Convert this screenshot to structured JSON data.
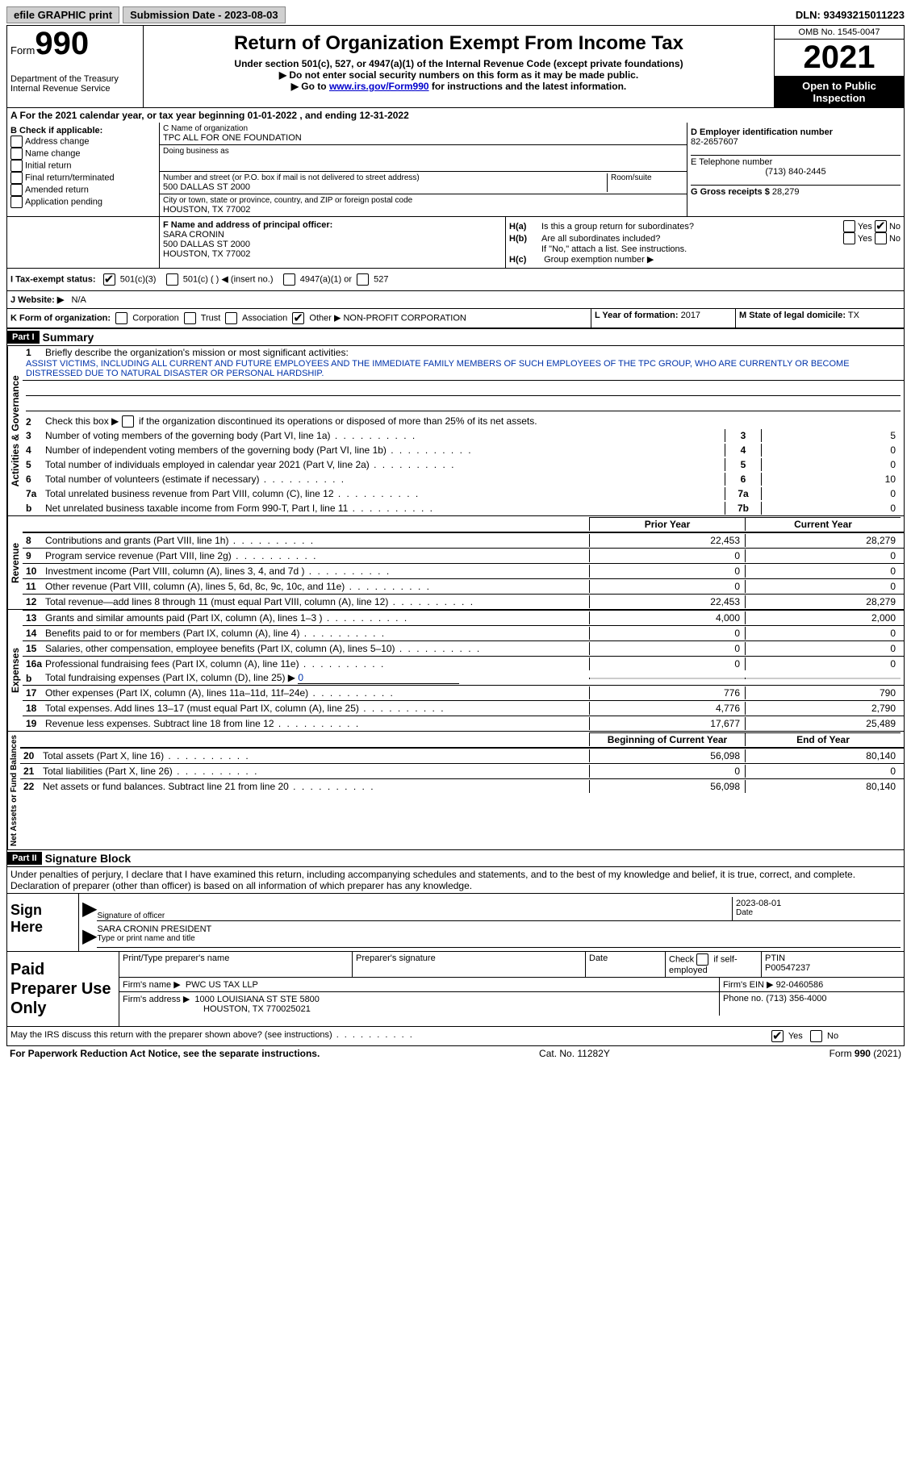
{
  "header": {
    "efile": "efile GRAPHIC print",
    "submission_label": "Submission Date - 2023-08-03",
    "dln": "DLN: 93493215011223"
  },
  "form": {
    "form_word": "Form",
    "form_num": "990",
    "title": "Return of Organization Exempt From Income Tax",
    "subtitle": "Under section 501(c), 527, or 4947(a)(1) of the Internal Revenue Code (except private foundations)",
    "note1": "▶ Do not enter social security numbers on this form as it may be made public.",
    "note2_pre": "▶ Go to ",
    "note2_link": "www.irs.gov/Form990",
    "note2_post": " for instructions and the latest information.",
    "dept": "Department of the Treasury",
    "irs": "Internal Revenue Service",
    "omb": "OMB No. 1545-0047",
    "year": "2021",
    "open": "Open to Public Inspection"
  },
  "period": "A For the 2021 calendar year, or tax year beginning 01-01-2022   , and ending 12-31-2022",
  "box_b": {
    "title": "B Check if applicable:",
    "items": [
      "Address change",
      "Name change",
      "Initial return",
      "Final return/terminated",
      "Amended return",
      "Application pending"
    ]
  },
  "box_c": {
    "name_label": "C Name of organization",
    "name": "TPC ALL FOR ONE FOUNDATION",
    "dba_label": "Doing business as",
    "addr_label": "Number and street (or P.O. box if mail is not delivered to street address)",
    "room_label": "Room/suite",
    "addr": "500 DALLAS ST 2000",
    "city_label": "City or town, state or province, country, and ZIP or foreign postal code",
    "city": "HOUSTON, TX  77002"
  },
  "box_d": {
    "ein_label": "D Employer identification number",
    "ein": "82-2657607",
    "phone_label": "E Telephone number",
    "phone": "(713) 840-2445",
    "gross_label": "G Gross receipts $",
    "gross": "28,279"
  },
  "box_f": {
    "label": "F Name and address of principal officer:",
    "name": "SARA CRONIN",
    "addr1": "500 DALLAS ST 2000",
    "addr2": "HOUSTON, TX  77002"
  },
  "box_h": {
    "ha_label": "H(a)",
    "ha_text": "Is this a group return for subordinates?",
    "hb_label": "H(b)",
    "hb_text": "Are all subordinates included?",
    "hb_note": "If \"No,\" attach a list. See instructions.",
    "hc_label": "H(c)",
    "hc_text": "Group exemption number ▶",
    "yes": "Yes",
    "no": "No"
  },
  "tax_exempt": {
    "label": "I   Tax-exempt status:",
    "c1": "501(c)(3)",
    "c2": "501(c) (  ) ◀ (insert no.)",
    "c3": "4947(a)(1) or",
    "c4": "527"
  },
  "website": {
    "label": "J   Website: ▶",
    "value": "N/A"
  },
  "form_org": {
    "label": "K Form of organization:",
    "o1": "Corporation",
    "o2": "Trust",
    "o3": "Association",
    "o4": "Other ▶",
    "other_val": "NON-PROFIT CORPORATION",
    "year_label": "L Year of formation:",
    "year_val": "2017",
    "state_label": "M State of legal domicile:",
    "state_val": "TX"
  },
  "part1": {
    "header": "Part I",
    "title": "Summary"
  },
  "activities": {
    "vert": "Activities & Governance",
    "l1_label": "1",
    "l1_text": "Briefly describe the organization's mission or most significant activities:",
    "l1_mission": "ASSIST VICTIMS, INCLUDING ALL CURRENT AND FUTURE EMPLOYEES AND THE IMMEDIATE FAMILY MEMBERS OF SUCH EMPLOYEES OF THE TPC GROUP, WHO ARE CURRENTLY OR BECOME DISTRESSED DUE TO NATURAL DISASTER OR PERSONAL HARDSHIP.",
    "l2_text": "Check this box ▶        if the organization discontinued its operations or disposed of more than 25% of its net assets.",
    "lines": [
      {
        "n": "3",
        "d": "Number of voting members of the governing body (Part VI, line 1a)",
        "box": "3",
        "v": "5"
      },
      {
        "n": "4",
        "d": "Number of independent voting members of the governing body (Part VI, line 1b)",
        "box": "4",
        "v": "0"
      },
      {
        "n": "5",
        "d": "Total number of individuals employed in calendar year 2021 (Part V, line 2a)",
        "box": "5",
        "v": "0"
      },
      {
        "n": "6",
        "d": "Total number of volunteers (estimate if necessary)",
        "box": "6",
        "v": "10"
      },
      {
        "n": "7a",
        "d": "Total unrelated business revenue from Part VIII, column (C), line 12",
        "box": "7a",
        "v": "0"
      },
      {
        "n": "b",
        "d": "Net unrelated business taxable income from Form 990-T, Part I, line 11",
        "box": "7b",
        "v": "0"
      }
    ]
  },
  "revenue": {
    "vert": "Revenue",
    "prior_h": "Prior Year",
    "curr_h": "Current Year",
    "lines": [
      {
        "n": "8",
        "d": "Contributions and grants (Part VIII, line 1h)",
        "p": "22,453",
        "c": "28,279"
      },
      {
        "n": "9",
        "d": "Program service revenue (Part VIII, line 2g)",
        "p": "0",
        "c": "0"
      },
      {
        "n": "10",
        "d": "Investment income (Part VIII, column (A), lines 3, 4, and 7d )",
        "p": "0",
        "c": "0"
      },
      {
        "n": "11",
        "d": "Other revenue (Part VIII, column (A), lines 5, 6d, 8c, 9c, 10c, and 11e)",
        "p": "0",
        "c": "0"
      },
      {
        "n": "12",
        "d": "Total revenue—add lines 8 through 11 (must equal Part VIII, column (A), line 12)",
        "p": "22,453",
        "c": "28,279"
      }
    ]
  },
  "expenses": {
    "vert": "Expenses",
    "lines": [
      {
        "n": "13",
        "d": "Grants and similar amounts paid (Part IX, column (A), lines 1–3 )",
        "p": "4,000",
        "c": "2,000"
      },
      {
        "n": "14",
        "d": "Benefits paid to or for members (Part IX, column (A), line 4)",
        "p": "0",
        "c": "0"
      },
      {
        "n": "15",
        "d": "Salaries, other compensation, employee benefits (Part IX, column (A), lines 5–10)",
        "p": "0",
        "c": "0"
      },
      {
        "n": "16a",
        "d": "Professional fundraising fees (Part IX, column (A), line 11e)",
        "p": "0",
        "c": "0"
      }
    ],
    "l16b_pre": "b",
    "l16b_d": "Total fundraising expenses (Part IX, column (D), line 25) ▶",
    "l16b_v": "0",
    "lines2": [
      {
        "n": "17",
        "d": "Other expenses (Part IX, column (A), lines 11a–11d, 11f–24e)",
        "p": "776",
        "c": "790"
      },
      {
        "n": "18",
        "d": "Total expenses. Add lines 13–17 (must equal Part IX, column (A), line 25)",
        "p": "4,776",
        "c": "2,790"
      },
      {
        "n": "19",
        "d": "Revenue less expenses. Subtract line 18 from line 12",
        "p": "17,677",
        "c": "25,489"
      }
    ]
  },
  "netassets": {
    "vert": "Net Assets or Fund Balances",
    "beg_h": "Beginning of Current Year",
    "end_h": "End of Year",
    "lines": [
      {
        "n": "20",
        "d": "Total assets (Part X, line 16)",
        "p": "56,098",
        "c": "80,140"
      },
      {
        "n": "21",
        "d": "Total liabilities (Part X, line 26)",
        "p": "0",
        "c": "0"
      },
      {
        "n": "22",
        "d": "Net assets or fund balances. Subtract line 21 from line 20",
        "p": "56,098",
        "c": "80,140"
      }
    ]
  },
  "part2": {
    "header": "Part II",
    "title": "Signature Block",
    "declaration": "Under penalties of perjury, I declare that I have examined this return, including accompanying schedules and statements, and to the best of my knowledge and belief, it is true, correct, and complete. Declaration of preparer (other than officer) is based on all information of which preparer has any knowledge."
  },
  "sign": {
    "label": "Sign Here",
    "sig_of": "Signature of officer",
    "date": "Date",
    "date_val": "2023-08-01",
    "name": "SARA CRONIN  PRESIDENT",
    "type_label": "Type or print name and title"
  },
  "paid": {
    "label": "Paid Preparer Use Only",
    "h1": "Print/Type preparer's name",
    "h2": "Preparer's signature",
    "h3": "Date",
    "h4_pre": "Check",
    "h4_post": "if self-employed",
    "h5": "PTIN",
    "ptin": "P00547237",
    "firm_name_l": "Firm's name    ▶",
    "firm_name": "PWC US TAX LLP",
    "firm_ein_l": "Firm's EIN ▶",
    "firm_ein": "92-0460586",
    "firm_addr_l": "Firm's address ▶",
    "firm_addr1": "1000 LOUISIANA ST STE 5800",
    "firm_addr2": "HOUSTON, TX  770025021",
    "phone_l": "Phone no.",
    "phone": "(713) 356-4000"
  },
  "discuss": {
    "text": "May the IRS discuss this return with the preparer shown above? (see instructions)",
    "yes": "Yes",
    "no": "No"
  },
  "footer": {
    "left": "For Paperwork Reduction Act Notice, see the separate instructions.",
    "mid": "Cat. No. 11282Y",
    "right": "Form 990 (2021)"
  }
}
